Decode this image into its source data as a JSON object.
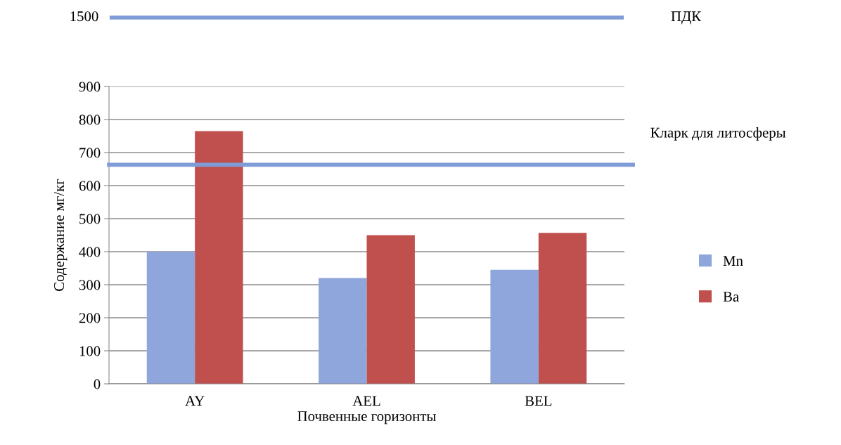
{
  "chart_data": [
    {
      "type": "other",
      "color": "#7f9cd8",
      "annotations": [
        "1500",
        "ПДК"
      ]
    },
    {
      "type": "bar",
      "categories": [
        "AY",
        "AEL",
        "BEL"
      ],
      "series": [
        {
          "name": "Mn",
          "color": "#8ea6db",
          "values": [
            400,
            320,
            345
          ]
        },
        {
          "name": "Ba",
          "color": "#c0504d",
          "values": [
            765,
            450,
            457
          ]
        }
      ],
      "xlabel": "Почвенные горизонты",
      "ylabel": "Содержание мг/кг",
      "ylim": [
        0,
        900
      ],
      "yticks": [
        0,
        100,
        200,
        300,
        400,
        500,
        600,
        700,
        800,
        900
      ],
      "grid": "y",
      "legend": "right",
      "ref_lines": [
        {
          "axis": "y",
          "value": 663,
          "label": "Кларк для литосферы",
          "color": "#7f9cd8"
        }
      ]
    }
  ]
}
